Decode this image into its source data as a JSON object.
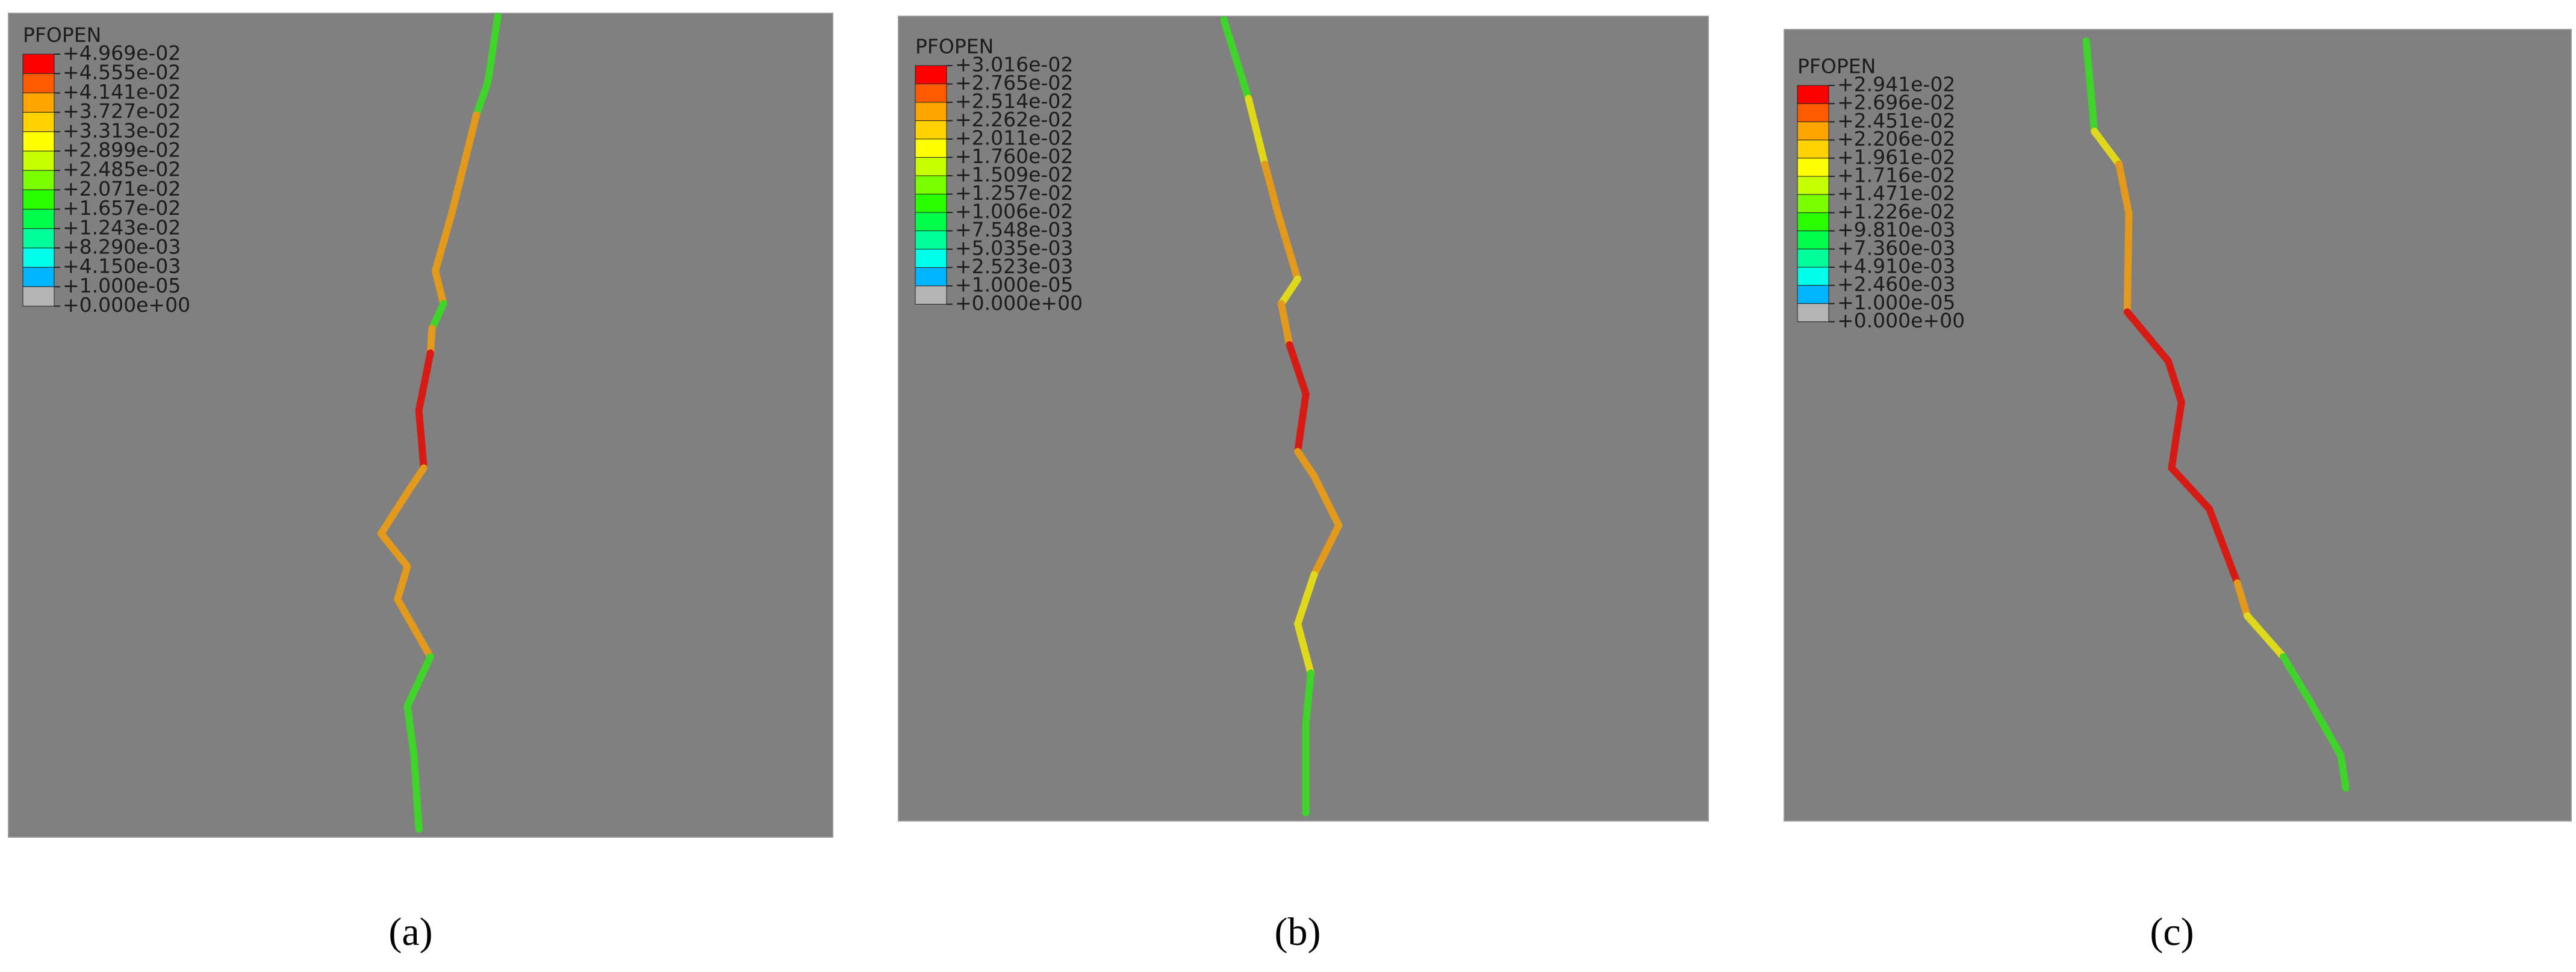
{
  "panels": [
    {
      "legend_title": "PFOPEN",
      "legend_labels": [
        "+4.969e-02",
        "+4.555e-02",
        "+4.141e-02",
        "+3.727e-02",
        "+3.313e-02",
        "+2.899e-02",
        "+2.485e-02",
        "+2.071e-02",
        "+1.657e-02",
        "+1.243e-02",
        "+8.290e-03",
        "+4.150e-03",
        "+1.000e-05",
        "+0.000e+00"
      ],
      "caption": "(a)"
    },
    {
      "legend_title": "PFOPEN",
      "legend_labels": [
        "+3.016e-02",
        "+2.765e-02",
        "+2.514e-02",
        "+2.262e-02",
        "+2.011e-02",
        "+1.760e-02",
        "+1.509e-02",
        "+1.257e-02",
        "+1.006e-02",
        "+7.548e-03",
        "+5.035e-03",
        "+2.523e-03",
        "+1.000e-05",
        "+0.000e+00"
      ],
      "caption": "(b)"
    },
    {
      "legend_title": "PFOPEN",
      "legend_labels": [
        "+2.941e-02",
        "+2.696e-02",
        "+2.451e-02",
        "+2.206e-02",
        "+1.961e-02",
        "+1.716e-02",
        "+1.471e-02",
        "+1.226e-02",
        "+9.810e-03",
        "+7.360e-03",
        "+4.910e-03",
        "+2.460e-03",
        "+1.000e-05",
        "+0.000e+00"
      ],
      "caption": "(c)"
    }
  ]
}
